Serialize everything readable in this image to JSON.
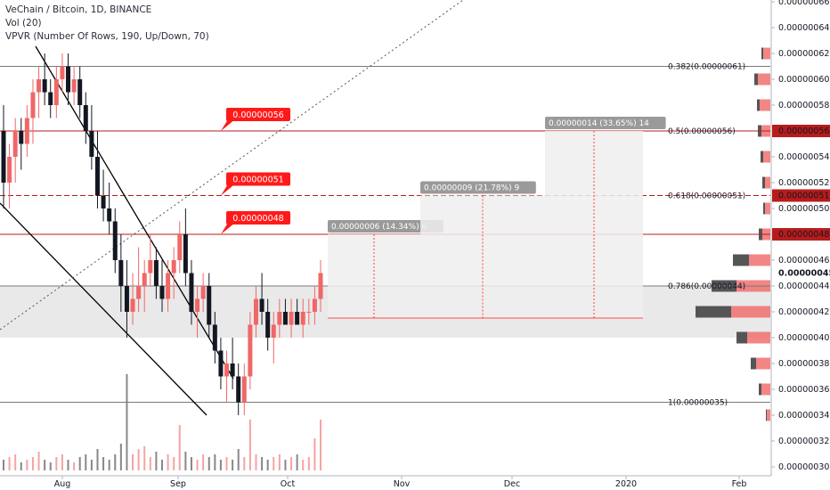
{
  "header": {
    "symbol_line": "VeChain / Bitcoin, 1D, BINANCE",
    "vol_line": "Vol (20)",
    "vpvr_line": "VPVR (Number Of Rows, 190, Up/Down, 70)"
  },
  "colors": {
    "up": "#f06767",
    "down": "#131722",
    "vol_up": "#f5a3a3",
    "vol_down": "#888888",
    "price_label": "#b71c1c",
    "alert": "#ff1a1a",
    "zone": "#e1e1e1",
    "fib_line": "#7a7a7a"
  },
  "chart_data": {
    "type": "candlestick",
    "ylim": [
      3e-07,
      7e-07
    ],
    "y_ticks": [
      "0.00000030",
      "0.00000032",
      "0.00000034",
      "0.00000036",
      "0.00000038",
      "0.00000040",
      "0.00000042",
      "0.00000044",
      "0.00000046",
      "0.00000050",
      "0.00000052",
      "0.00000054",
      "0.00000058",
      "0.00000060",
      "0.00000062",
      "0.00000064",
      "0.00000066"
    ],
    "x_ticks": [
      "Aug",
      "Sep",
      "Oct",
      "Nov",
      "Dec",
      "2020",
      "Feb"
    ],
    "highlighted_prices": [
      "0.00000045",
      "0.00000048",
      "0.00000051",
      "0.00000056"
    ],
    "fib_levels": [
      {
        "label": "0.382(0.00000061)",
        "value": 6.1e-07
      },
      {
        "label": "0.5(0.00000056)",
        "value": 5.6e-07
      },
      {
        "label": "0.618(0.00000051)",
        "value": 5.1e-07
      },
      {
        "label": "0.786(0.00000044)",
        "value": 4.4e-07
      },
      {
        "label": "1(0.00000035)",
        "value": 3.5e-07
      }
    ],
    "alerts": [
      {
        "text": "0.00000056",
        "value": 5.6e-07
      },
      {
        "text": "0.00000051",
        "value": 5.1e-07
      },
      {
        "text": "0.00000048",
        "value": 4.8e-07
      }
    ],
    "targets": [
      {
        "text": "0.00000006 (14.34%) 6",
        "value": 4.8e-07
      },
      {
        "text": "0.00000009 (21.78%) 9",
        "value": 5.1e-07
      },
      {
        "text": "0.00000014 (33.65%) 14",
        "value": 5.6e-07
      }
    ],
    "zone": [
      4e-07,
      4.4e-07
    ],
    "ohlc": [
      [
        5.6e-07,
        5.8e-07,
        5e-07,
        5.2e-07
      ],
      [
        5.2e-07,
        5.5e-07,
        5e-07,
        5.4e-07
      ],
      [
        5.4e-07,
        5.7e-07,
        5.2e-07,
        5.6e-07
      ],
      [
        5.6e-07,
        5.7e-07,
        5.3e-07,
        5.5e-07
      ],
      [
        5.5e-07,
        5.8e-07,
        5.4e-07,
        5.7e-07
      ],
      [
        5.7e-07,
        6e-07,
        5.5e-07,
        5.9e-07
      ],
      [
        5.9e-07,
        6.1e-07,
        5.7e-07,
        6e-07
      ],
      [
        6e-07,
        6.2e-07,
        5.8e-07,
        5.9e-07
      ],
      [
        5.9e-07,
        6e-07,
        5.7e-07,
        5.8e-07
      ],
      [
        5.8e-07,
        6.1e-07,
        5.7e-07,
        6e-07
      ],
      [
        6e-07,
        6.2e-07,
        5.9e-07,
        6.1e-07
      ],
      [
        6.1e-07,
        6.2e-07,
        5.8e-07,
        5.9e-07
      ],
      [
        5.9e-07,
        6.1e-07,
        5.8e-07,
        6e-07
      ],
      [
        6e-07,
        6.1e-07,
        5.7e-07,
        5.8e-07
      ],
      [
        5.8e-07,
        5.9e-07,
        5.5e-07,
        5.6e-07
      ],
      [
        5.6e-07,
        5.8e-07,
        5.3e-07,
        5.4e-07
      ],
      [
        5.4e-07,
        5.6e-07,
        5e-07,
        5.1e-07
      ],
      [
        5.1e-07,
        5.3e-07,
        4.9e-07,
        5e-07
      ],
      [
        5e-07,
        5.2e-07,
        4.8e-07,
        4.9e-07
      ],
      [
        4.9e-07,
        5e-07,
        4.5e-07,
        4.6e-07
      ],
      [
        4.6e-07,
        4.8e-07,
        4.2e-07,
        4.4e-07
      ],
      [
        4.4e-07,
        4.6e-07,
        4e-07,
        4.2e-07
      ],
      [
        4.2e-07,
        4.5e-07,
        4.1e-07,
        4.3e-07
      ],
      [
        4.3e-07,
        4.7e-07,
        4.2e-07,
        4.4e-07
      ],
      [
        4.4e-07,
        4.6e-07,
        4.2e-07,
        4.5e-07
      ],
      [
        4.5e-07,
        4.8e-07,
        4.4e-07,
        4.6e-07
      ],
      [
        4.6e-07,
        4.7e-07,
        4.3e-07,
        4.4e-07
      ],
      [
        4.4e-07,
        4.6e-07,
        4.2e-07,
        4.3e-07
      ],
      [
        4.3e-07,
        4.6e-07,
        4.2e-07,
        4.5e-07
      ],
      [
        4.5e-07,
        4.7e-07,
        4.3e-07,
        4.6e-07
      ],
      [
        4.6e-07,
        4.9e-07,
        4.5e-07,
        4.8e-07
      ],
      [
        4.8e-07,
        5e-07,
        4.4e-07,
        4.5e-07
      ],
      [
        4.5e-07,
        4.6e-07,
        4.1e-07,
        4.2e-07
      ],
      [
        4.2e-07,
        4.4e-07,
        4e-07,
        4.3e-07
      ],
      [
        4.3e-07,
        4.5e-07,
        4.2e-07,
        4.4e-07
      ],
      [
        4.4e-07,
        4.5e-07,
        4e-07,
        4.1e-07
      ],
      [
        4.1e-07,
        4.2e-07,
        3.8e-07,
        3.9e-07
      ],
      [
        3.9e-07,
        4e-07,
        3.6e-07,
        3.7e-07
      ],
      [
        3.7e-07,
        3.9e-07,
        3.5e-07,
        3.8e-07
      ],
      [
        3.8e-07,
        4e-07,
        3.6e-07,
        3.7e-07
      ],
      [
        3.7e-07,
        3.8e-07,
        3.4e-07,
        3.5e-07
      ],
      [
        3.5e-07,
        3.8e-07,
        3.4e-07,
        3.7e-07
      ],
      [
        3.7e-07,
        4.2e-07,
        3.6e-07,
        4.1e-07
      ],
      [
        4.1e-07,
        4.4e-07,
        4e-07,
        4.3e-07
      ],
      [
        4.3e-07,
        4.5e-07,
        4.1e-07,
        4.2e-07
      ],
      [
        4.2e-07,
        4.3e-07,
        3.9e-07,
        4e-07
      ],
      [
        4e-07,
        4.2e-07,
        3.8e-07,
        4.1e-07
      ],
      [
        4.1e-07,
        4.3e-07,
        4e-07,
        4.2e-07
      ],
      [
        4.2e-07,
        4.3e-07,
        4.1e-07,
        4.1e-07
      ],
      [
        4.1e-07,
        4.3e-07,
        4e-07,
        4.2e-07
      ],
      [
        4.2e-07,
        4.3e-07,
        4.1e-07,
        4.1e-07
      ],
      [
        4.1e-07,
        4.3e-07,
        4e-07,
        4.2e-07
      ],
      [
        4.2e-07,
        4.3e-07,
        4.1e-07,
        4.2e-07
      ],
      [
        4.2e-07,
        4.4e-07,
        4.1e-07,
        4.3e-07
      ],
      [
        4.3e-07,
        4.6e-07,
        4.2e-07,
        4.5e-07
      ]
    ],
    "volume": [
      4,
      5,
      6,
      3,
      4,
      5,
      7,
      4,
      3,
      5,
      6,
      4,
      3,
      5,
      6,
      4,
      8,
      5,
      4,
      6,
      10,
      36,
      6,
      8,
      9,
      5,
      7,
      4,
      6,
      5,
      17,
      7,
      5,
      4,
      6,
      5,
      6,
      4,
      5,
      4,
      8,
      5,
      19,
      6,
      5,
      4,
      5,
      6,
      4,
      5,
      6,
      4,
      5,
      12,
      19
    ],
    "vpvr": [
      {
        "price": 6.2e-07,
        "up": 8,
        "down": 2
      },
      {
        "price": 6e-07,
        "up": 14,
        "down": 4
      },
      {
        "price": 5.8e-07,
        "up": 12,
        "down": 3
      },
      {
        "price": 5.6e-07,
        "up": 10,
        "down": 4
      },
      {
        "price": 5.4e-07,
        "up": 8,
        "down": 3
      },
      {
        "price": 5.2e-07,
        "up": 6,
        "down": 3
      },
      {
        "price": 5e-07,
        "up": 6,
        "down": 2
      },
      {
        "price": 4.8e-07,
        "up": 9,
        "down": 4
      },
      {
        "price": 4.6e-07,
        "up": 24,
        "down": 18
      },
      {
        "price": 4.4e-07,
        "up": 38,
        "down": 28
      },
      {
        "price": 4.2e-07,
        "up": 44,
        "down": 40
      },
      {
        "price": 4e-07,
        "up": 26,
        "down": 12
      },
      {
        "price": 3.8e-07,
        "up": 16,
        "down": 6
      },
      {
        "price": 3.6e-07,
        "up": 10,
        "down": 3
      },
      {
        "price": 3.4e-07,
        "up": 4,
        "down": 1
      }
    ]
  }
}
